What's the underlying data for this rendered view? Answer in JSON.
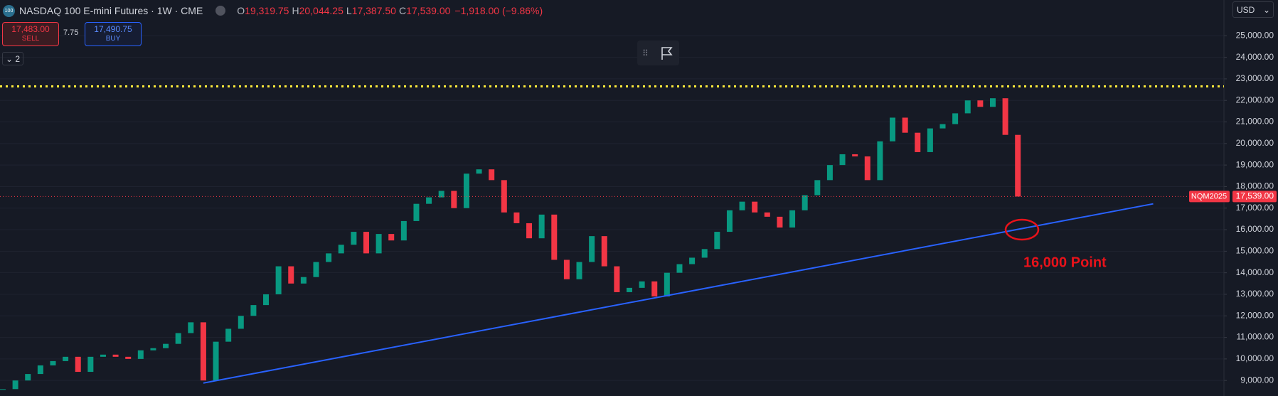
{
  "chart_data": {
    "type": "candlestick",
    "header": {
      "logo": "100",
      "title": "NASDAQ 100 E-mini Futures · 1W · CME",
      "ohlc": [
        {
          "key": "O",
          "value": "19,319.75"
        },
        {
          "key": "H",
          "value": "20,044.25"
        },
        {
          "key": "L",
          "value": "17,387.50"
        },
        {
          "key": "C",
          "value": "17,539.00"
        }
      ],
      "change": "−1,918.00 (−9.86%)"
    },
    "sell": {
      "price": "17,483.00",
      "label": "SELL"
    },
    "spread": "7.75",
    "buy": {
      "price": "17,490.75",
      "label": "BUY"
    },
    "indicator_count": "2",
    "currency": "USD",
    "up_color": "#089981",
    "down_color": "#f23645",
    "values": [
      8600,
      9000,
      9300,
      9700,
      9900,
      10100,
      9400,
      10100,
      10200,
      10100,
      10000,
      10400,
      10500,
      10700,
      11200,
      11700,
      9000,
      10800,
      11400,
      12000,
      12500,
      13000,
      14300,
      13500,
      13800,
      14500,
      14900,
      15300,
      15900,
      14900,
      15800,
      15500,
      16400,
      17200,
      17500,
      17800,
      17000,
      18600,
      18800,
      18300,
      16800,
      16300,
      15600,
      16700,
      14600,
      13700,
      14500,
      15700,
      14300,
      13100,
      13300,
      13600,
      12900,
      14000,
      14400,
      14700,
      15100,
      15900,
      16900,
      17300,
      16800,
      16600,
      16100,
      16900,
      17600,
      18300,
      19000,
      19500,
      19400,
      18300,
      20100,
      21200,
      20500,
      19600,
      20700,
      20900,
      21400,
      22000,
      21700,
      22100,
      20400,
      17539
    ],
    "ylim": [
      8280,
      26660
    ],
    "yticks": [
      {
        "value": 9000,
        "label": "9,000.00"
      },
      {
        "value": 10000,
        "label": "10,000.00"
      },
      {
        "value": 11000,
        "label": "11,000.00"
      },
      {
        "value": 12000,
        "label": "12,000.00"
      },
      {
        "value": 13000,
        "label": "13,000.00"
      },
      {
        "value": 14000,
        "label": "14,000.00"
      },
      {
        "value": 15000,
        "label": "15,000.00"
      },
      {
        "value": 16000,
        "label": "16,000.00"
      },
      {
        "value": 17000,
        "label": "17,000.00"
      },
      {
        "value": 18000,
        "label": "18,000.00"
      },
      {
        "value": 19000,
        "label": "19,000.00"
      },
      {
        "value": 20000,
        "label": "20,000.00"
      },
      {
        "value": 21000,
        "label": "21,000.00"
      },
      {
        "value": 22000,
        "label": "22,000.00"
      },
      {
        "value": 23000,
        "label": "23,000.00"
      },
      {
        "value": 24000,
        "label": "24,000.00"
      },
      {
        "value": 25000,
        "label": "25,000.00"
      }
    ],
    "grid": true,
    "last_price": {
      "value": 17539,
      "label": "17,539.00",
      "symbol": "NQM2025",
      "color": "#f23645"
    },
    "resistance": {
      "value": 22650,
      "color": "#ffeb3b"
    },
    "trendline": {
      "start": 8880,
      "end": 17200,
      "color": "#2962ff"
    },
    "annotation": {
      "text": "16,000 Point",
      "value": 16000,
      "color": "#e8121a"
    }
  }
}
